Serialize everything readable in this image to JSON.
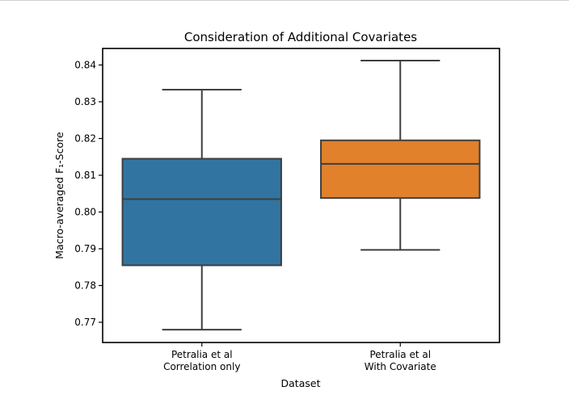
{
  "chart_data": {
    "type": "box",
    "title": "Consideration of Additional Covariates",
    "xlabel": "Dataset",
    "ylabel": "Macro-averaged F₁-Score",
    "ylim": [
      0.7645,
      0.8445
    ],
    "yticks": [
      "0.77",
      "0.78",
      "0.79",
      "0.80",
      "0.81",
      "0.82",
      "0.83",
      "0.84"
    ],
    "ytick_values": [
      0.77,
      0.78,
      0.79,
      0.8,
      0.81,
      0.82,
      0.83,
      0.84
    ],
    "grid": false,
    "categories": [
      {
        "line1": "Petralia et al",
        "line2": "Correlation only"
      },
      {
        "line1": "Petralia et al",
        "line2": "With Covariate"
      }
    ],
    "boxes": [
      {
        "whisker_low": 0.768,
        "q1": 0.7855,
        "median": 0.8035,
        "q3": 0.8145,
        "whisker_high": 0.8333,
        "color": "#3274a1"
      },
      {
        "whisker_low": 0.7897,
        "q1": 0.8038,
        "median": 0.8131,
        "q3": 0.8195,
        "whisker_high": 0.8412,
        "color": "#e1812c"
      }
    ]
  },
  "colors": {
    "box_edge": "#3f3f3f",
    "axes": "#000000"
  }
}
